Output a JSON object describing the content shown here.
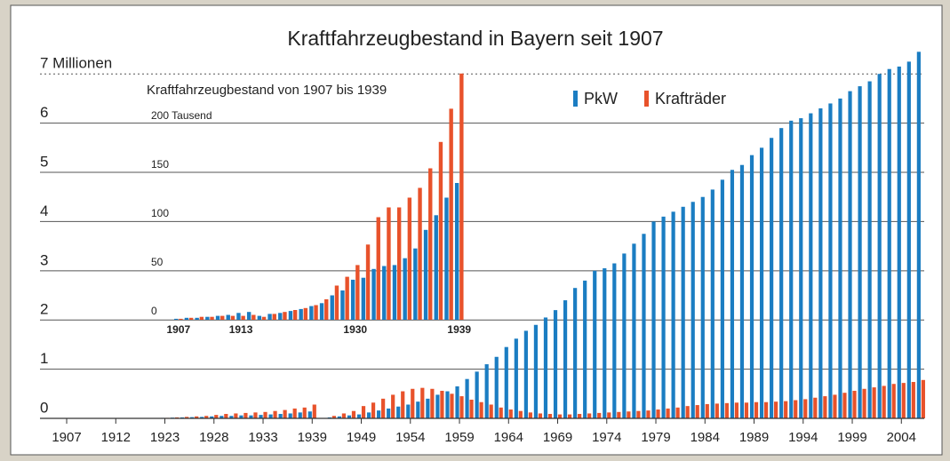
{
  "chart_data": [
    {
      "type": "bar",
      "title": "Kraftfahrzeugbestand in Bayern seit 1907",
      "categories": [
        "1907",
        null,
        null,
        null,
        null,
        "1912",
        null,
        null,
        null,
        null,
        "1923",
        null,
        null,
        null,
        null,
        "1928",
        null,
        null,
        null,
        null,
        "1933",
        null,
        null,
        null,
        null,
        "1939",
        null,
        null,
        null,
        null,
        "1949",
        null,
        null,
        null,
        null,
        "1954",
        null,
        null,
        null,
        null,
        "1959",
        null,
        null,
        null,
        null,
        "1964",
        null,
        null,
        null,
        null,
        "1969",
        null,
        null,
        null,
        null,
        "1974",
        null,
        null,
        null,
        null,
        "1979",
        null,
        null,
        null,
        null,
        "1984",
        null,
        null,
        null,
        null,
        "1989",
        null,
        null,
        null,
        null,
        "1994",
        null,
        null,
        null,
        null,
        "1999",
        null,
        null,
        null,
        null,
        "2004",
        null,
        null
      ],
      "series": [
        {
          "name": "PkW",
          "color": "#1b7dc2",
          "values": [
            null,
            null,
            null,
            null,
            null,
            null,
            null,
            null,
            null,
            null,
            0.01,
            0.015,
            0.02,
            0.025,
            0.03,
            0.04,
            0.05,
            0.05,
            0.06,
            0.06,
            0.07,
            0.08,
            0.09,
            0.1,
            0.12,
            0.14,
            null,
            0.02,
            0.04,
            0.06,
            0.08,
            0.12,
            0.16,
            0.2,
            0.24,
            0.28,
            0.34,
            0.4,
            0.48,
            0.55,
            0.65,
            0.8,
            0.95,
            1.1,
            1.25,
            1.45,
            1.62,
            1.78,
            1.9,
            2.05,
            2.2,
            2.4,
            2.65,
            2.8,
            3.0,
            3.05,
            3.15,
            3.35,
            3.55,
            3.75,
            4.0,
            4.1,
            4.2,
            4.3,
            4.4,
            4.5,
            4.65,
            4.85,
            5.05,
            5.15,
            5.35,
            5.5,
            5.7,
            5.9,
            6.05,
            6.1,
            6.2,
            6.3,
            6.4,
            6.5,
            6.65,
            6.75,
            6.85,
            7.0,
            7.1,
            7.15,
            7.25,
            7.45
          ]
        },
        {
          "name": "Krafträder",
          "color": "#e8522b",
          "values": [
            null,
            null,
            null,
            null,
            null,
            null,
            null,
            null,
            null,
            null,
            0.01,
            0.02,
            0.03,
            0.04,
            0.05,
            0.07,
            0.09,
            0.1,
            0.11,
            0.12,
            0.13,
            0.15,
            0.17,
            0.2,
            0.22,
            0.28,
            null,
            0.05,
            0.1,
            0.15,
            0.25,
            0.32,
            0.4,
            0.48,
            0.55,
            0.6,
            0.62,
            0.6,
            0.56,
            0.5,
            0.45,
            0.38,
            0.33,
            0.28,
            0.22,
            0.18,
            0.15,
            0.12,
            0.1,
            0.09,
            0.08,
            0.08,
            0.09,
            0.1,
            0.11,
            0.12,
            0.13,
            0.14,
            0.15,
            0.16,
            0.18,
            0.2,
            0.22,
            0.25,
            0.27,
            0.29,
            0.3,
            0.31,
            0.32,
            0.32,
            0.33,
            0.33,
            0.34,
            0.35,
            0.37,
            0.39,
            0.42,
            0.45,
            0.48,
            0.52,
            0.56,
            0.6,
            0.63,
            0.66,
            0.7,
            0.72,
            0.74,
            0.78
          ]
        }
      ],
      "ylim": [
        0,
        7.6
      ],
      "yticks": [
        0,
        1,
        2,
        3,
        4,
        5,
        6,
        {
          "value": 7,
          "label": "7 Millionen"
        }
      ],
      "grid": true,
      "legend": "top-right"
    },
    {
      "type": "bar",
      "title": "Kraftfahrzeugbestand von 1907 bis 1939",
      "categories": [
        "1907",
        null,
        null,
        null,
        null,
        null,
        "1913",
        null,
        null,
        null,
        null,
        null,
        null,
        null,
        null,
        null,
        null,
        "1930",
        null,
        null,
        null,
        null,
        null,
        null,
        null,
        null,
        null,
        "1939"
      ],
      "series": [
        {
          "color": "#1b7dc2",
          "values": [
            1,
            2,
            2,
            3,
            4,
            5,
            7,
            8,
            4,
            6,
            7,
            9,
            11,
            14,
            17,
            25,
            30,
            41,
            43,
            52,
            55,
            56,
            63,
            73,
            92,
            107,
            125,
            140
          ]
        },
        {
          "color": "#e8522b",
          "values": [
            1,
            2,
            3,
            3,
            4,
            4,
            4,
            5,
            3,
            6,
            8,
            10,
            12,
            15,
            21,
            35,
            44,
            56,
            77,
            105,
            115,
            115,
            125,
            135,
            155,
            182,
            216,
            252
          ]
        }
      ],
      "ylim": [
        0,
        260
      ],
      "yticks": [
        0,
        50,
        100,
        150,
        {
          "value": 200,
          "label": "200 Tausend"
        }
      ]
    }
  ]
}
